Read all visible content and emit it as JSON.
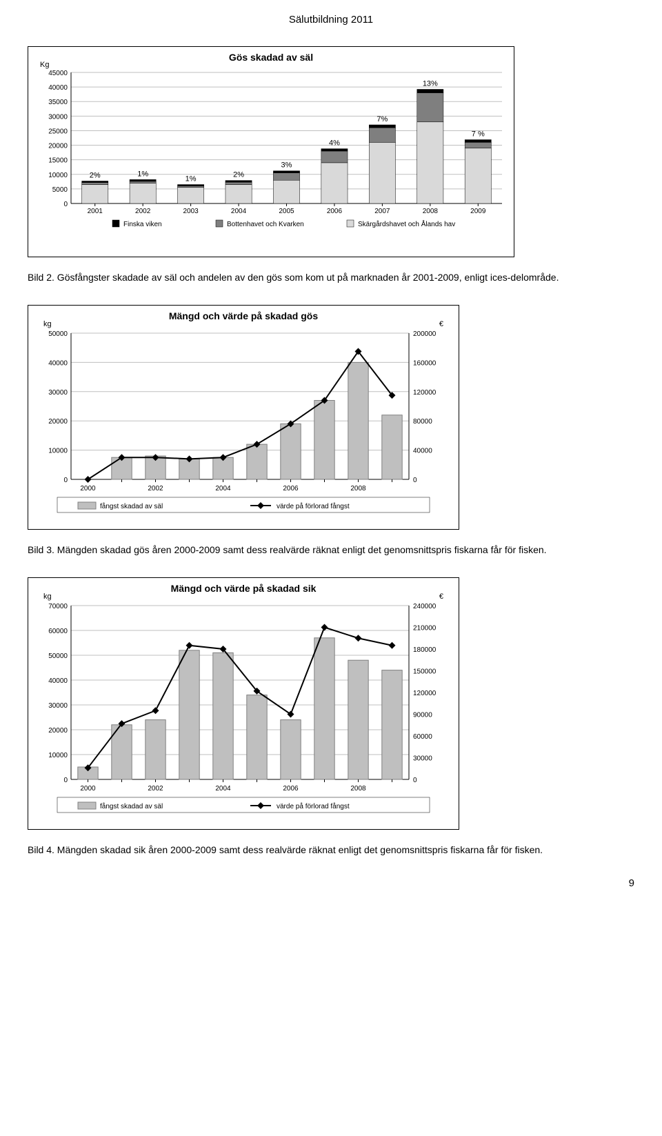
{
  "header": "Sälutbildning 2011",
  "pageNumber": "9",
  "caption1": "Bild 2. Gösfångster skadade av säl och andelen av den gös som kom ut på marknaden år 2001-2009, enligt ices-delområde.",
  "caption2": "Bild 3. Mängden skadad gös åren 2000-2009 samt dess realvärde räknat enligt det genomsnittspris fiskarna får för fisken.",
  "caption3": "Bild 4. Mängden skadad sik åren 2000-2009 samt dess realvärde räknat enligt det genomsnittspris fiskarna får för fisken.",
  "chart1": {
    "type": "stacked-bar",
    "title": "Gös skadad av säl",
    "title_fontsize": 14,
    "ylabel": "Kg",
    "categories": [
      "2001",
      "2002",
      "2003",
      "2004",
      "2005",
      "2006",
      "2007",
      "2008",
      "2009"
    ],
    "ylim": [
      0,
      45000
    ],
    "yticks": [
      0,
      5000,
      10000,
      15000,
      20000,
      25000,
      30000,
      35000,
      40000,
      45000
    ],
    "series": [
      {
        "name": "Finska viken",
        "color": "#000000",
        "values": [
          500,
          600,
          500,
          600,
          700,
          800,
          1000,
          1200,
          900
        ]
      },
      {
        "name": "Bottenhavet och Kvarken",
        "color": "#7f7f7f",
        "values": [
          700,
          600,
          500,
          800,
          2500,
          4000,
          5000,
          10000,
          2000
        ]
      },
      {
        "name": "Skärgårdshavet och Ålands hav",
        "color": "#d9d9d9",
        "values": [
          6500,
          7000,
          5500,
          6500,
          8000,
          14000,
          21000,
          28000,
          19000
        ]
      }
    ],
    "topLabels": [
      "2%",
      "1%",
      "1%",
      "2%",
      "3%",
      "4%",
      "7%",
      "13%",
      "7 %"
    ],
    "background_color": "#ffffff",
    "grid_color": "#bfbfbf",
    "axis_color": "#000000",
    "bar_width": 0.55,
    "label_fontsize": 11
  },
  "chart2": {
    "type": "combo-bar-line",
    "title": "Mängd och värde på skadad gös",
    "title_fontsize": 14,
    "ylabel_left": "kg",
    "ylabel_right": "€",
    "categories": [
      "2000",
      "2001",
      "2002",
      "2003",
      "2004",
      "2005",
      "2006",
      "2007",
      "2008",
      "2009"
    ],
    "xticks": [
      "2000",
      "2002",
      "2004",
      "2006",
      "2008"
    ],
    "ylim_left": [
      0,
      50000
    ],
    "yticks_left": [
      0,
      10000,
      20000,
      30000,
      40000,
      50000
    ],
    "ylim_right": [
      0,
      200000
    ],
    "yticks_right": [
      0,
      40000,
      80000,
      120000,
      160000,
      200000
    ],
    "bar_series": {
      "name": "fångst skadad av säl",
      "color": "#bfbfbf",
      "border": "#808080",
      "values": [
        0,
        7500,
        8000,
        7000,
        7500,
        12000,
        19000,
        27000,
        40000,
        22000
      ]
    },
    "line_series": {
      "name": "värde på förlorad fångst",
      "color": "#000000",
      "marker": "diamond",
      "values": [
        0,
        30000,
        30000,
        28000,
        30000,
        48000,
        76000,
        108000,
        175000,
        115000
      ]
    },
    "background_color": "#ffffff",
    "grid_color": "#bfbfbf",
    "axis_color": "#000000",
    "bar_width": 0.6,
    "label_fontsize": 11
  },
  "chart3": {
    "type": "combo-bar-line",
    "title": "Mängd och värde på skadad sik",
    "title_fontsize": 14,
    "ylabel_left": "kg",
    "ylabel_right": "€",
    "categories": [
      "2000",
      "2001",
      "2002",
      "2003",
      "2004",
      "2005",
      "2006",
      "2007",
      "2008",
      "2009"
    ],
    "xticks": [
      "2000",
      "2002",
      "2004",
      "2006",
      "2008"
    ],
    "ylim_left": [
      0,
      70000
    ],
    "yticks_left": [
      0,
      10000,
      20000,
      30000,
      40000,
      50000,
      60000,
      70000
    ],
    "ylim_right": [
      0,
      240000
    ],
    "yticks_right": [
      0,
      30000,
      60000,
      90000,
      120000,
      150000,
      180000,
      210000,
      240000
    ],
    "bar_series": {
      "name": "fångst skadad av säl",
      "color": "#bfbfbf",
      "border": "#808080",
      "values": [
        5000,
        22000,
        24000,
        52000,
        51000,
        34000,
        24000,
        57000,
        48000,
        44000
      ]
    },
    "line_series": {
      "name": "värde på förlorad fångst",
      "color": "#000000",
      "marker": "diamond",
      "values": [
        16000,
        77000,
        95000,
        185000,
        180000,
        122000,
        90000,
        210000,
        195000,
        185000
      ]
    },
    "background_color": "#ffffff",
    "grid_color": "#bfbfbf",
    "axis_color": "#000000",
    "bar_width": 0.6,
    "label_fontsize": 11
  }
}
